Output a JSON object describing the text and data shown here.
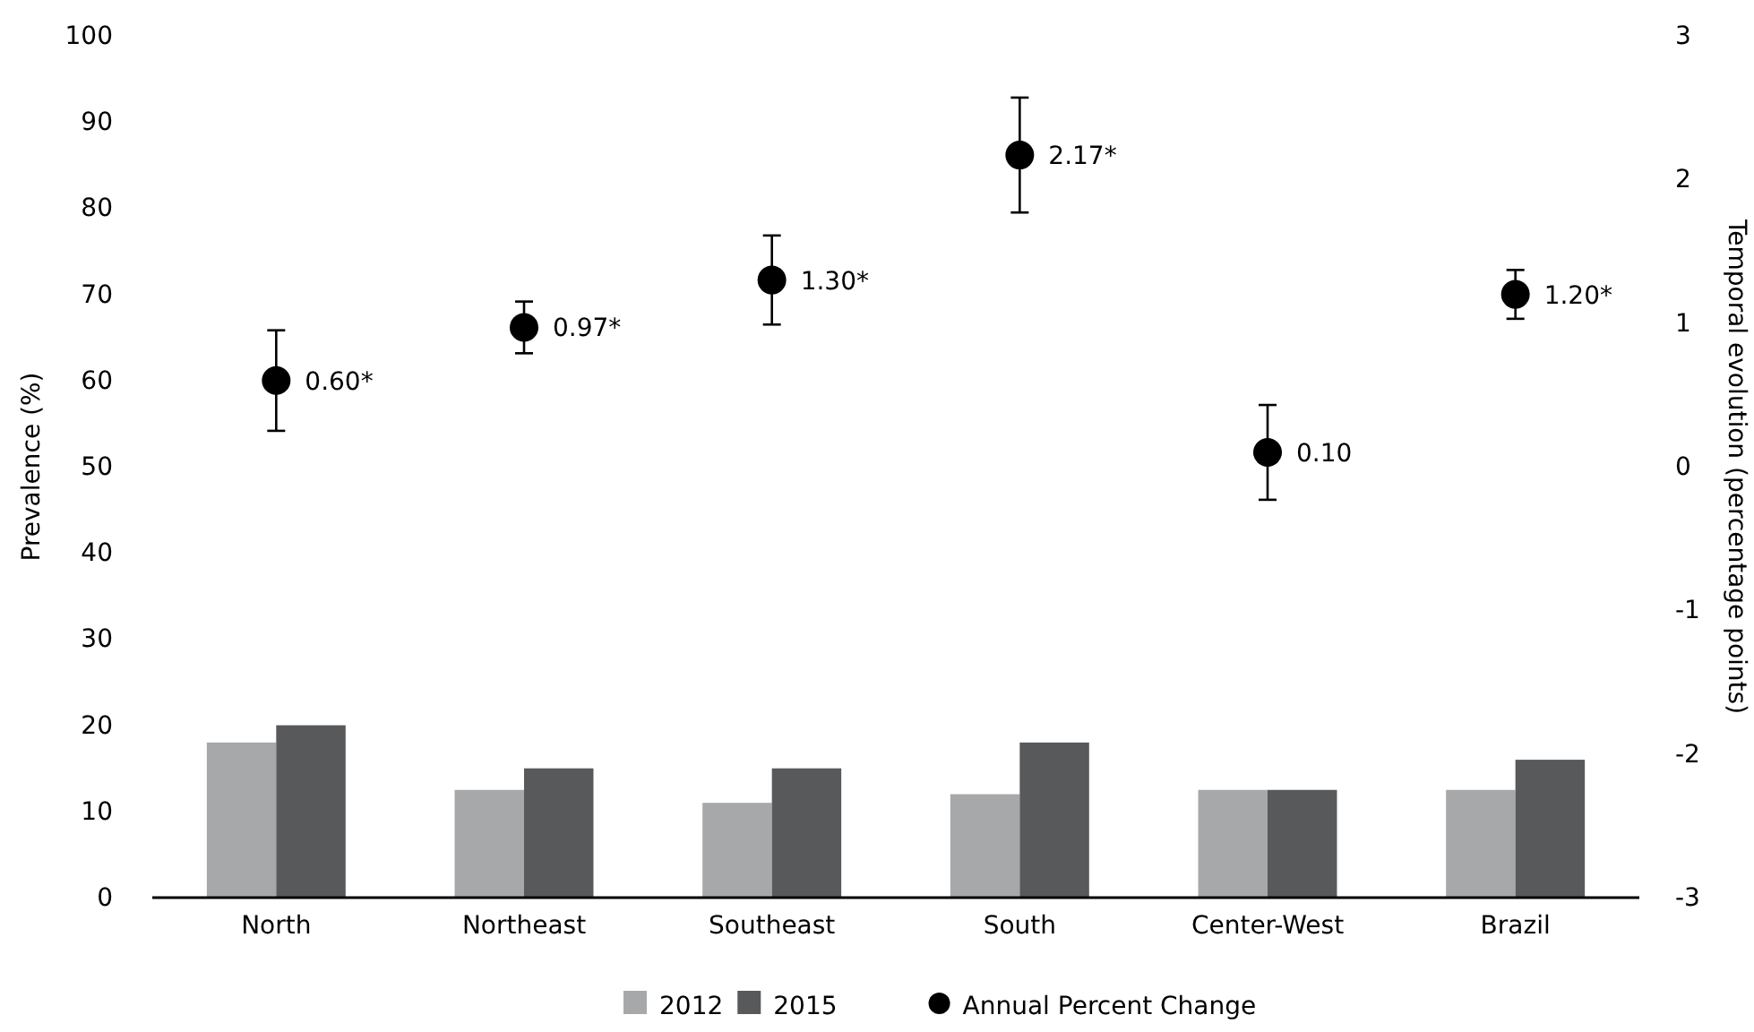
{
  "chart_data": {
    "type": "bar",
    "ylabel": "Prevalence (%)",
    "y2label": "Temporal evolution (percentage points)",
    "categories": [
      "North",
      "Northeast",
      "Southeast",
      "South",
      "Center-West",
      "Brazil"
    ],
    "series": [
      {
        "name": "2012",
        "color": "#a7a8aa",
        "values": [
          18,
          12.5,
          11,
          12,
          12.5,
          12.5
        ]
      },
      {
        "name": "2015",
        "color": "#58595b",
        "values": [
          20,
          15,
          15,
          18,
          12.5,
          16
        ]
      },
      {
        "name": "Annual Percent Change",
        "type": "scatter",
        "axis": "y2",
        "color": "#000000",
        "marker": "circle",
        "values": [
          0.6,
          0.97,
          1.3,
          2.17,
          0.1,
          1.2
        ],
        "errors": [
          0.35,
          0.18,
          0.31,
          0.4,
          0.33,
          0.17
        ],
        "value_labels": [
          "0.60*",
          "0.97*",
          "1.30*",
          "2.17*",
          "0.10",
          "1.20*"
        ]
      }
    ],
    "ylim": [
      0,
      100
    ],
    "yticks": [
      0,
      10,
      20,
      30,
      40,
      50,
      60,
      70,
      80,
      90,
      100
    ],
    "y2lim": [
      -3,
      3
    ],
    "y2ticks": [
      -3,
      -2,
      -1,
      0,
      1,
      2,
      3
    ],
    "grid": false,
    "legend": "bottom"
  }
}
